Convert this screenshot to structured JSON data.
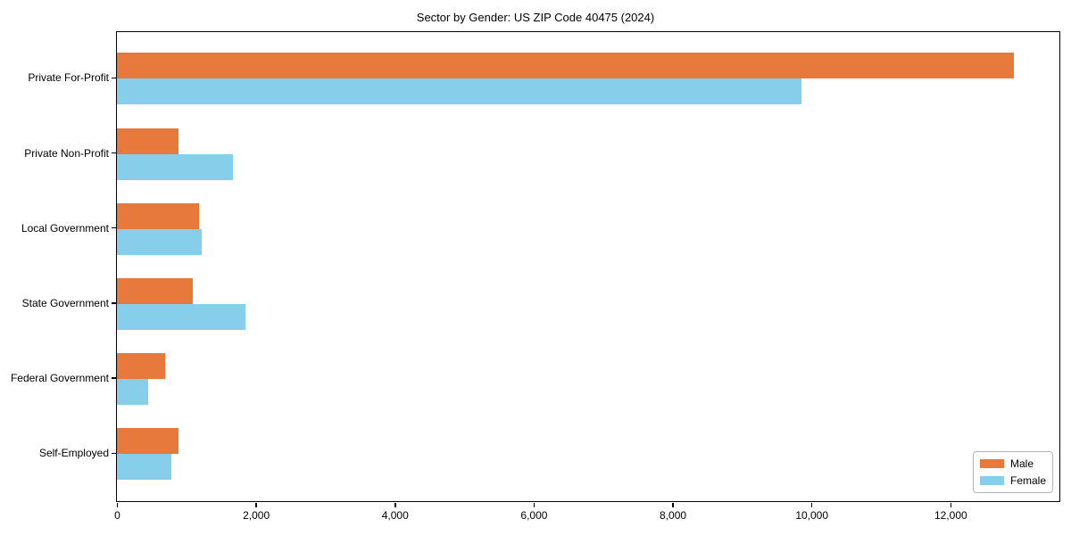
{
  "page": {
    "title": "Sector by Gender: US ZIP Code 40475 (2024)"
  },
  "chart_data": {
    "type": "bar",
    "orientation": "horizontal",
    "title": "Sector by Gender: US ZIP Code 40475 (2024)",
    "categories": [
      "Private For-Profit",
      "Private Non-Profit",
      "Local Government",
      "State Government",
      "Federal Government",
      "Self-Employed"
    ],
    "series": [
      {
        "name": "Male",
        "color": "#E8793D",
        "values": [
          12920,
          890,
          1180,
          1090,
          690,
          890
        ]
      },
      {
        "name": "Female",
        "color": "#87CEEB",
        "values": [
          9850,
          1670,
          1220,
          1850,
          450,
          780
        ]
      }
    ],
    "xlabel": "",
    "ylabel": "",
    "xlim": [
      0,
      13570
    ],
    "xticks": [
      0,
      2000,
      4000,
      6000,
      8000,
      10000,
      12000
    ],
    "xtick_labels": [
      "0",
      "2,000",
      "4,000",
      "6,000",
      "8,000",
      "10,000",
      "12,000"
    ],
    "grid": false,
    "legend": {
      "position": "lower right"
    }
  }
}
